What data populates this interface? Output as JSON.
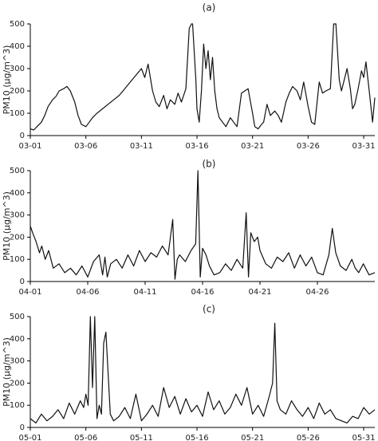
{
  "chart_data": [
    {
      "type": "line",
      "title": "(a)",
      "xlabel": "",
      "ylabel": "PM10 (μg/m^3)",
      "ylim": [
        0,
        500
      ],
      "yticks": [
        0,
        100,
        200,
        300,
        400,
        500
      ],
      "xlim": [
        1,
        32
      ],
      "xticks": [
        {
          "day": 1,
          "label": "03-01"
        },
        {
          "day": 6,
          "label": "03-06"
        },
        {
          "day": 11,
          "label": "03-11"
        },
        {
          "day": 16,
          "label": "03-16"
        },
        {
          "day": 21,
          "label": "03-21"
        },
        {
          "day": 26,
          "label": "03-26"
        },
        {
          "day": 31,
          "label": "03-31"
        }
      ],
      "grid": false,
      "series": [
        {
          "color": "#111111",
          "x": [
            1,
            1.3,
            1.6,
            2,
            2.3,
            2.6,
            3,
            3.3,
            3.6,
            4,
            4.3,
            4.6,
            5,
            5.3,
            5.6,
            6,
            6.3,
            6.6,
            7,
            7.5,
            8,
            8.5,
            9,
            9.5,
            10,
            10.5,
            11,
            11.3,
            11.6,
            12,
            12.3,
            12.6,
            13,
            13.3,
            13.6,
            14,
            14.3,
            14.6,
            15,
            15.3,
            15.5,
            15.6,
            15.9,
            16,
            16.2,
            16.4,
            16.6,
            16.8,
            17,
            17.2,
            17.4,
            17.6,
            17.8,
            18,
            18.3,
            18.6,
            19,
            19.3,
            19.6,
            20,
            20.3,
            20.6,
            21,
            21.2,
            21.5,
            21.8,
            22,
            22.3,
            22.6,
            23,
            23.3,
            23.6,
            24,
            24.3,
            24.6,
            25,
            25.3,
            25.6,
            26,
            26.3,
            26.6,
            27,
            27.3,
            27.6,
            28,
            28.3,
            28.5,
            28.8,
            29,
            29.2,
            29.5,
            29.8,
            30,
            30.2,
            30.5,
            30.8,
            31,
            31.2,
            31.5,
            31.8,
            32
          ],
          "y": [
            30,
            25,
            40,
            60,
            90,
            130,
            160,
            175,
            200,
            210,
            220,
            200,
            150,
            90,
            50,
            40,
            60,
            80,
            100,
            120,
            140,
            160,
            180,
            210,
            240,
            270,
            300,
            260,
            320,
            200,
            150,
            130,
            180,
            120,
            160,
            140,
            190,
            150,
            210,
            480,
            500,
            500,
            250,
            120,
            60,
            200,
            410,
            300,
            380,
            250,
            350,
            200,
            120,
            80,
            60,
            40,
            80,
            60,
            40,
            190,
            200,
            210,
            100,
            40,
            30,
            50,
            60,
            140,
            90,
            110,
            90,
            60,
            150,
            190,
            220,
            200,
            160,
            240,
            130,
            60,
            50,
            240,
            190,
            200,
            210,
            500,
            500,
            250,
            200,
            240,
            300,
            210,
            120,
            140,
            210,
            290,
            260,
            330,
            200,
            60,
            170
          ]
        }
      ]
    },
    {
      "type": "line",
      "title": "(b)",
      "xlabel": "",
      "ylabel": "PM10 (μg/m^3)",
      "ylim": [
        0,
        500
      ],
      "yticks": [
        0,
        100,
        200,
        300,
        400,
        500
      ],
      "xlim": [
        1,
        31
      ],
      "xticks": [
        {
          "day": 1,
          "label": "04-01"
        },
        {
          "day": 6,
          "label": "04-06"
        },
        {
          "day": 11,
          "label": "04-11"
        },
        {
          "day": 16,
          "label": "04-16"
        },
        {
          "day": 21,
          "label": "04-21"
        },
        {
          "day": 26,
          "label": "04-26"
        }
      ],
      "grid": false,
      "series": [
        {
          "color": "#111111",
          "x": [
            1,
            1.2,
            1.5,
            1.8,
            2,
            2.3,
            2.6,
            3,
            3.5,
            4,
            4.5,
            5,
            5.5,
            6,
            6.5,
            7,
            7.3,
            7.5,
            7.7,
            8,
            8.5,
            9,
            9.5,
            10,
            10.5,
            11,
            11.5,
            12,
            12.5,
            13,
            13.4,
            13.6,
            13.8,
            14,
            14.5,
            15,
            15.4,
            15.6,
            15.8,
            16,
            16.3,
            16.6,
            17,
            17.5,
            18,
            18.5,
            19,
            19.5,
            19.8,
            20,
            20.2,
            20.5,
            20.8,
            21,
            21.5,
            22,
            22.5,
            23,
            23.5,
            24,
            24.5,
            25,
            25.5,
            26,
            26.5,
            27,
            27.3,
            27.6,
            28,
            28.5,
            29,
            29.3,
            29.6,
            30,
            30.5,
            31
          ],
          "y": [
            250,
            220,
            180,
            130,
            160,
            100,
            140,
            60,
            80,
            40,
            60,
            30,
            70,
            20,
            90,
            120,
            30,
            110,
            20,
            80,
            100,
            60,
            120,
            70,
            140,
            90,
            130,
            110,
            160,
            120,
            280,
            10,
            100,
            120,
            90,
            140,
            170,
            500,
            20,
            150,
            120,
            70,
            30,
            40,
            80,
            50,
            100,
            60,
            310,
            20,
            220,
            180,
            200,
            140,
            80,
            60,
            110,
            90,
            130,
            60,
            120,
            70,
            110,
            40,
            30,
            120,
            240,
            130,
            70,
            50,
            100,
            60,
            40,
            80,
            30,
            40
          ]
        }
      ]
    },
    {
      "type": "line",
      "title": "(c)",
      "xlabel": "",
      "ylabel": "PM10 (μg/m^3)",
      "ylim": [
        0,
        500
      ],
      "yticks": [
        0,
        100,
        200,
        300,
        400,
        500
      ],
      "xlim": [
        1,
        32
      ],
      "xticks": [
        {
          "day": 1,
          "label": "05-01"
        },
        {
          "day": 6,
          "label": "05-06"
        },
        {
          "day": 11,
          "label": "05-11"
        },
        {
          "day": 16,
          "label": "05-16"
        },
        {
          "day": 21,
          "label": "05-21"
        },
        {
          "day": 26,
          "label": "05-26"
        },
        {
          "day": 31,
          "label": "05-31"
        }
      ],
      "grid": false,
      "series": [
        {
          "color": "#111111",
          "x": [
            1,
            1.5,
            2,
            2.5,
            3,
            3.5,
            4,
            4.5,
            5,
            5.5,
            5.8,
            6,
            6.2,
            6.4,
            6.6,
            6.8,
            7,
            7.2,
            7.4,
            7.6,
            7.8,
            8,
            8.2,
            8.5,
            9,
            9.5,
            10,
            10.5,
            11,
            11.5,
            12,
            12.5,
            13,
            13.5,
            14,
            14.5,
            15,
            15.5,
            16,
            16.5,
            17,
            17.5,
            18,
            18.5,
            19,
            19.5,
            20,
            20.5,
            21,
            21.5,
            22,
            22.5,
            22.8,
            23,
            23.2,
            23.5,
            24,
            24.5,
            25,
            25.5,
            26,
            26.5,
            27,
            27.5,
            28,
            28.5,
            29,
            29.5,
            30,
            30.5,
            31,
            31.5,
            32
          ],
          "y": [
            40,
            20,
            60,
            30,
            50,
            80,
            40,
            110,
            60,
            120,
            90,
            150,
            100,
            500,
            180,
            500,
            40,
            100,
            60,
            380,
            430,
            250,
            60,
            30,
            50,
            90,
            40,
            150,
            30,
            60,
            100,
            50,
            180,
            90,
            140,
            60,
            130,
            70,
            100,
            50,
            160,
            80,
            120,
            60,
            90,
            150,
            100,
            180,
            60,
            100,
            50,
            140,
            200,
            470,
            120,
            80,
            60,
            120,
            80,
            50,
            90,
            40,
            110,
            60,
            80,
            40,
            30,
            20,
            50,
            40,
            90,
            60,
            80
          ]
        }
      ]
    }
  ]
}
